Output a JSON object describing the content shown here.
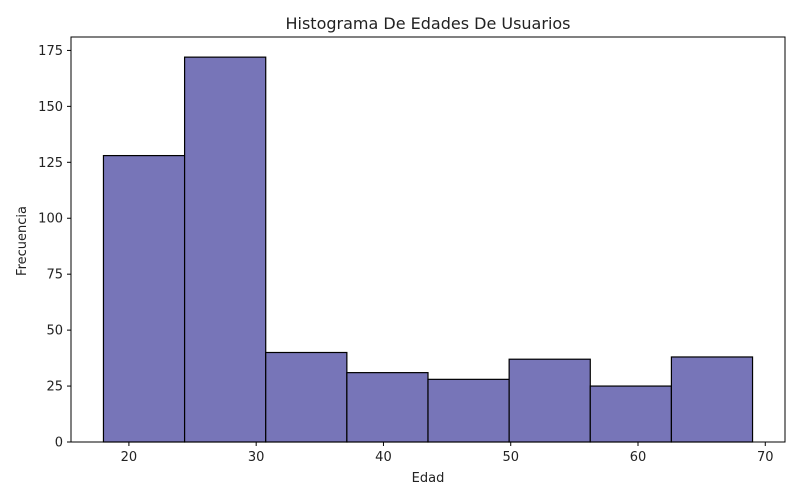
{
  "chart_data": {
    "type": "bar",
    "title": "Histograma De Edades De Usuarios",
    "xlabel": "Edad",
    "ylabel": "Frecuencia",
    "bin_edges": [
      18,
      24.375,
      30.75,
      37.125,
      43.5,
      49.875,
      56.25,
      62.625,
      69
    ],
    "values": [
      128,
      172,
      40,
      31,
      28,
      37,
      25,
      38
    ],
    "xlim": [
      15.45,
      71.55
    ],
    "ylim": [
      0,
      181
    ],
    "xticks": [
      20,
      30,
      40,
      50,
      60,
      70
    ],
    "yticks": [
      0,
      25,
      50,
      75,
      100,
      125,
      150,
      175
    ],
    "bar_color": "#7775b8",
    "edge_color": "#000000",
    "grid": false,
    "legend": "none"
  }
}
